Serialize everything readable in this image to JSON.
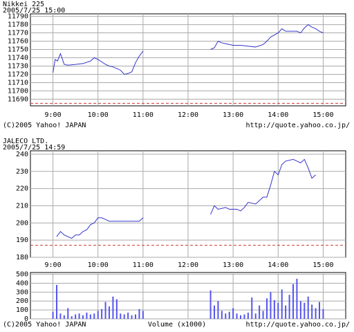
{
  "chart_data": [
    {
      "type": "line",
      "title": "Nikkei 225",
      "subtitle": "2005/7/25 15:00",
      "x": [
        540,
        543,
        546,
        550,
        555,
        560,
        570,
        580,
        590,
        595,
        600,
        605,
        610,
        615,
        620,
        625,
        630,
        635,
        640,
        645,
        650,
        655,
        660,
        700,
        750,
        755,
        760,
        765,
        770,
        780,
        790,
        800,
        810,
        820,
        825,
        830,
        840,
        845,
        850,
        855,
        865,
        870,
        875,
        880,
        885,
        890,
        895,
        900
      ],
      "series": [
        {
          "name": "Nikkei 225",
          "color": "#3333cc",
          "values": [
            11722,
            11738,
            11736,
            11745,
            11732,
            11731,
            11732,
            11733,
            11736,
            11740,
            11738,
            11735,
            11732,
            11730,
            11729,
            11727,
            11725,
            11720,
            11721,
            11723,
            11734,
            11742,
            11748,
            null,
            11750,
            11752,
            11760,
            11758,
            11757,
            11755,
            11755,
            11754,
            11753,
            11756,
            11760,
            11765,
            11770,
            11775,
            11772,
            11772,
            11772,
            11770,
            11776,
            11780,
            11777,
            11775,
            11772,
            11770
          ]
        }
      ],
      "reference_value": 11685,
      "reference_color": "#cc3333",
      "xlim": [
        510,
        930
      ],
      "xticks": [
        {
          "value": 540,
          "label": "9:00"
        },
        {
          "value": 600,
          "label": "10:00"
        },
        {
          "value": 660,
          "label": "11:00"
        },
        {
          "value": 720,
          "label": "12:00"
        },
        {
          "value": 780,
          "label": "13:00"
        },
        {
          "value": 840,
          "label": "14:00"
        },
        {
          "value": 900,
          "label": "15:00"
        }
      ],
      "ylim": [
        11682,
        11793
      ],
      "yticks": [
        11690,
        11700,
        11710,
        11720,
        11730,
        11740,
        11750,
        11760,
        11770,
        11780,
        11790
      ],
      "grid": true,
      "footer_left": "(C)2005 Yahoo! JAPAN",
      "footer_right": "http://quote.yahoo.co.jp/"
    },
    {
      "type": "line",
      "title": "JALECO  LTD.",
      "subtitle": "2005/7/25 14:59",
      "x": [
        545,
        550,
        555,
        560,
        565,
        570,
        575,
        580,
        585,
        590,
        595,
        600,
        605,
        610,
        615,
        625,
        635,
        645,
        655,
        660,
        700,
        750,
        755,
        760,
        770,
        775,
        785,
        790,
        795,
        800,
        810,
        820,
        825,
        830,
        835,
        840,
        845,
        850,
        860,
        865,
        870,
        875,
        880,
        885,
        890
      ],
      "series": [
        {
          "name": "JALECO  LTD.",
          "color": "#3333cc",
          "values": [
            192,
            195,
            193,
            192,
            191,
            193,
            193,
            195,
            196,
            199,
            200,
            203,
            203,
            202,
            201,
            201,
            201,
            201,
            201,
            203,
            null,
            205,
            210,
            208,
            209,
            208,
            208,
            207,
            209,
            212,
            211,
            215,
            215,
            222,
            230,
            228,
            234,
            236,
            237,
            236,
            235,
            237,
            232,
            226,
            228
          ]
        }
      ],
      "reference_value": 187,
      "reference_color": "#cc3333",
      "xlim": [
        510,
        930
      ],
      "xticks": [
        {
          "value": 540,
          "label": "9:00"
        },
        {
          "value": 600,
          "label": "10:00"
        },
        {
          "value": 660,
          "label": "11:00"
        },
        {
          "value": 720,
          "label": "12:00"
        },
        {
          "value": 780,
          "label": "13:00"
        },
        {
          "value": 840,
          "label": "14:00"
        },
        {
          "value": 900,
          "label": "15:00"
        }
      ],
      "ylim": [
        180,
        242
      ],
      "yticks": [
        180,
        190,
        200,
        210,
        220,
        230,
        240
      ],
      "grid": true
    },
    {
      "type": "bar",
      "x_label": "Volume (x1000)",
      "x": [
        540,
        545,
        550,
        555,
        560,
        565,
        570,
        575,
        580,
        585,
        590,
        595,
        600,
        605,
        610,
        615,
        620,
        625,
        630,
        635,
        640,
        645,
        650,
        655,
        660,
        750,
        755,
        760,
        765,
        770,
        775,
        780,
        785,
        790,
        795,
        800,
        805,
        810,
        815,
        820,
        825,
        830,
        835,
        840,
        845,
        850,
        855,
        860,
        865,
        870,
        875,
        880,
        885,
        890,
        895,
        900
      ],
      "values": [
        80,
        380,
        60,
        40,
        120,
        30,
        50,
        60,
        40,
        70,
        50,
        60,
        90,
        110,
        190,
        140,
        250,
        220,
        60,
        50,
        70,
        40,
        50,
        110,
        90,
        320,
        150,
        200,
        90,
        60,
        80,
        120,
        60,
        40,
        50,
        70,
        240,
        60,
        150,
        90,
        230,
        300,
        210,
        180,
        330,
        150,
        270,
        390,
        450,
        200,
        180,
        250,
        160,
        120,
        190,
        110
      ],
      "color": "#5555ee",
      "xlim": [
        510,
        930
      ],
      "xgrid": [
        540,
        600,
        660,
        720,
        780,
        840,
        900
      ],
      "ylim": [
        0,
        520
      ],
      "yticks": [
        0,
        100,
        200,
        300,
        400,
        500
      ],
      "grid": true,
      "footer_left": "(C)2005 Yahoo! JAPAN",
      "footer_right": "http://quote.yahoo.co.jp/"
    }
  ]
}
